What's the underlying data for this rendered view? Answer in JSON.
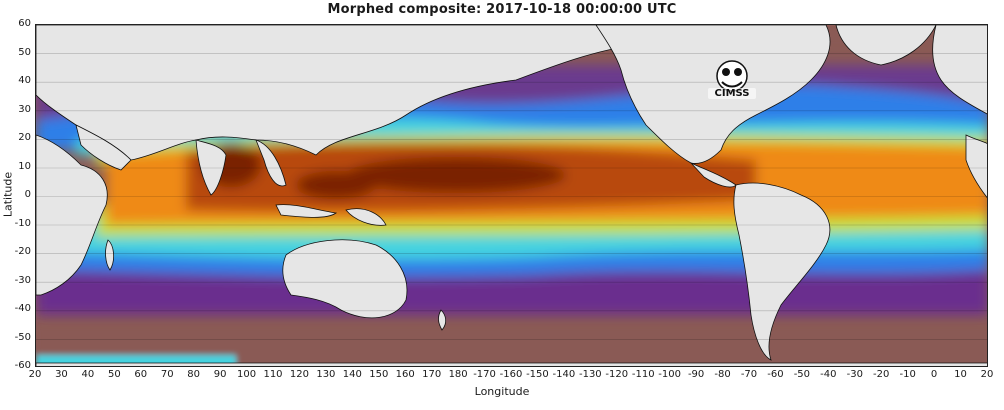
{
  "title": "Morphed composite: 2017-10-18 00:00:00 UTC",
  "xlabel": "Longitude",
  "ylabel": "Latitude",
  "logo_text": "CIMSS",
  "yticks": [
    "60",
    "50",
    "40",
    "30",
    "20",
    "10",
    "0",
    "-10",
    "-20",
    "-30",
    "-40",
    "-50",
    "-60"
  ],
  "xticks": [
    "20",
    "30",
    "40",
    "50",
    "60",
    "70",
    "80",
    "90",
    "100",
    "110",
    "120",
    "130",
    "140",
    "150",
    "160",
    "170",
    "180",
    "-170",
    "-160",
    "-150",
    "-140",
    "-130",
    "-120",
    "-110",
    "-100",
    "-90",
    "-80",
    "-70",
    "-60",
    "-50",
    "-40",
    "-30",
    "-20",
    "-10",
    "0",
    "10",
    "20"
  ],
  "colors": {
    "land": "#e6e6e6",
    "polar": "#8a5a55",
    "dry": "#6a1f8a",
    "low": "#2f7ff0",
    "mid": "#48d7e2",
    "moderate": "#c9e23a",
    "high": "#ef8a12",
    "very_high": "#b84a07",
    "extreme": "#7a2403"
  }
}
